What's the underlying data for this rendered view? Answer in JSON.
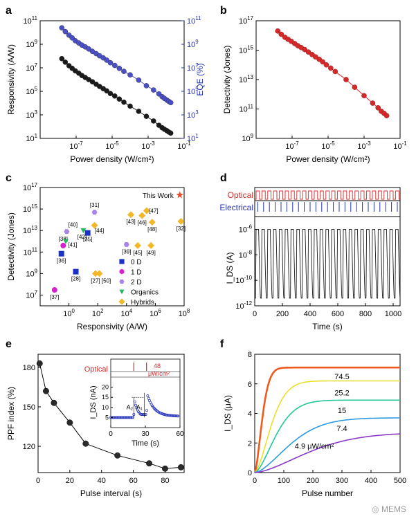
{
  "watermark": "MEMS",
  "chart_data": [
    {
      "panel": "a",
      "type": "scatter",
      "xscale": "log",
      "xlim": [
        1e-09,
        0.1
      ],
      "xticks": [
        "10^-7",
        "10^-5",
        "10^-3",
        "10^-1"
      ],
      "xlabel": "Power density (W/cm²)",
      "ylabel": "Responsivity (A/W)",
      "ylim": [
        10,
        100000000000.0
      ],
      "yscale": "log",
      "yticks": [
        "10^1",
        "10^3",
        "10^5",
        "10^7",
        "10^9",
        "10^11"
      ],
      "y2label": "EQE (%)",
      "y2lim": [
        10,
        100000000000.0
      ],
      "y2ticks": [
        "10^1",
        "10^3",
        "10^5",
        "10^7",
        "10^9",
        "10^11"
      ],
      "series": [
        {
          "color": "#4b50c8",
          "axis": "right",
          "fit": true,
          "x": [
            1.6e-08,
            2.5e-08,
            4e-08,
            6e-08,
            9e-08,
            1.4e-07,
            2.1e-07,
            3.2e-07,
            5e-07,
            8e-07,
            1.3e-06,
            2e-06,
            3.2e-06,
            5e-06,
            8e-06,
            1.4e-05,
            2.5e-05,
            4.5e-05,
            0.0001,
            0.0003,
            0.0008,
            0.002,
            0.004,
            0.006,
            0.008,
            0.011,
            0.014,
            0.018
          ],
          "y": [
            25000000000.0,
            12000000000.0,
            6000000000.0,
            3500000000.0,
            2000000000.0,
            1300000000.0,
            850000000.0,
            600000000.0,
            400000000.0,
            250000000.0,
            160000000.0,
            105000000.0,
            70000000.0,
            45000000.0,
            27000000.0,
            16000000.0,
            9000000.0,
            5000000.0,
            2500000.0,
            900000.0,
            300000.0,
            130000.0,
            60000.0,
            35000.0,
            25000.0,
            18000.0,
            14000.0,
            11000.0
          ]
        },
        {
          "color": "#1a1a1a",
          "axis": "left",
          "fit": true,
          "x": [
            1.6e-08,
            2.5e-08,
            4e-08,
            6e-08,
            9e-08,
            1.4e-07,
            2.1e-07,
            3.2e-07,
            5e-07,
            8e-07,
            1.3e-06,
            2e-06,
            3.2e-06,
            5e-06,
            8e-06,
            1.4e-05,
            2.5e-05,
            4.5e-05,
            0.0001,
            0.0003,
            0.0008,
            0.002,
            0.004,
            0.006,
            0.008,
            0.011,
            0.014,
            0.018
          ],
          "y": [
            60000000.0,
            30000000.0,
            15000000.0,
            9000000.0,
            5500000.0,
            3500000.0,
            2200000.0,
            1500000.0,
            1000000.0,
            650000.0,
            400000.0,
            260000.0,
            170000.0,
            110000.0,
            65000.0,
            40000.0,
            22000.0,
            12000.0,
            5500.0,
            2000.0,
            750.0,
            300.0,
            130.0,
            80,
            60,
            45,
            35,
            28
          ]
        }
      ]
    },
    {
      "panel": "b",
      "type": "scatter",
      "xscale": "log",
      "xlim": [
        1e-09,
        0.1
      ],
      "xticks": [
        "10^-7",
        "10^-5",
        "10^-3",
        "10^-1"
      ],
      "xlabel": "Power density (W/cm²)",
      "ylabel": "Detectivity (Jones)",
      "ylim": [
        1000000000.0,
        1e+17
      ],
      "yscale": "log",
      "yticks": [
        "10^9",
        "10^11",
        "10^13",
        "10^15",
        "10^17"
      ],
      "series": [
        {
          "color": "#d62a2a",
          "fit": true,
          "x": [
            1.6e-08,
            2.5e-08,
            4e-08,
            6e-08,
            9e-08,
            1.4e-07,
            2.1e-07,
            3.2e-07,
            5e-07,
            8e-07,
            1.3e-06,
            2e-06,
            3.2e-06,
            5e-06,
            8e-06,
            1.4e-05,
            2.5e-05,
            0.0001,
            0.0003,
            0.001,
            0.003,
            0.006,
            0.009,
            0.013,
            0.018
          ],
          "y": [
            2e+16,
            1.2e+16,
            7500000000000000.0,
            5500000000000000.0,
            4000000000000000.0,
            2800000000000000.0,
            2000000000000000.0,
            1500000000000000.0,
            1100000000000000.0,
            750000000000000.0,
            500000000000000.0,
            350000000000000.0,
            240000000000000.0,
            160000000000000.0,
            100000000000000.0,
            60000000000000.0,
            35000000000000.0,
            10000000000000.0,
            3000000000000.0,
            800000000000.0,
            250000000000.0,
            120000000000.0,
            70000000000.0,
            50000000000.0,
            35000000000.0
          ]
        }
      ]
    },
    {
      "panel": "c",
      "type": "scatter",
      "xscale": "log",
      "xlim": [
        0.01,
        100000000.0
      ],
      "xticks": [
        "10^0",
        "10^2",
        "10^4",
        "10^6",
        "10^8"
      ],
      "xlabel": "Responsivity (A/W)",
      "ylabel": "Detectivity (Jones)",
      "ylim": [
        1000000.0,
        1e+17
      ],
      "yscale": "log",
      "yticks": [
        "10^7",
        "10^9",
        "10^11",
        "10^13",
        "10^15",
        "10^17"
      ],
      "this_work": {
        "label": "This Work",
        "x": 50000000.0,
        "y": 2e+16,
        "color": "#e8502a"
      },
      "legend": [
        {
          "label": "0 D",
          "marker": "square",
          "color": "#1a31c8"
        },
        {
          "label": "1 D",
          "marker": "circle",
          "color": "#d620d0"
        },
        {
          "label": "2 D",
          "marker": "hexagon",
          "color": "#a884e8"
        },
        {
          "label": "Organics",
          "marker": "triangle",
          "color": "#22b85a"
        },
        {
          "label": "Hybrids",
          "marker": "diamond",
          "color": "#f2b82a"
        }
      ],
      "points": [
        {
          "ref": "[37]",
          "x": 0.1,
          "y": 30000000.0,
          "cls": "1 D"
        },
        {
          "ref": "[36]",
          "x": 0.3,
          "y": 70000000000.0,
          "cls": "0 D"
        },
        {
          "ref": "[38]",
          "x": 0.4,
          "y": 400000000000.0,
          "cls": "1 D"
        },
        {
          "ref": "[40]",
          "x": 0.7,
          "y": 8000000000000.0,
          "cls": "2 D"
        },
        {
          "ref": "[41]",
          "x": 0.6,
          "y": 1000000000000.0,
          "cls": "Organics"
        },
        {
          "ref": "[28]",
          "x": 3,
          "y": 1500000000.0,
          "cls": "0 D"
        },
        {
          "ref": "[42]",
          "x": 10,
          "y": 10000000000000.0,
          "cls": "Organics"
        },
        {
          "ref": "[35]",
          "x": 20,
          "y": 6000000000000.0,
          "cls": "0 D"
        },
        {
          "ref": "[31]",
          "x": 60,
          "y": 500000000000000.0,
          "cls": "2 D"
        },
        {
          "ref": "[44]",
          "x": 60,
          "y": 30000000000000.0,
          "cls": "Hybrids"
        },
        {
          "ref": "[27]",
          "x": 70,
          "y": 1000000000.0,
          "cls": "Hybrids"
        },
        {
          "ref": "[50]",
          "x": 130,
          "y": 1000000000.0,
          "cls": "Hybrids"
        },
        {
          "ref": "[39]",
          "x": 10000.0,
          "y": 500000000000.0,
          "cls": "2 D"
        },
        {
          "ref": "[43]",
          "x": 20000.0,
          "y": 300000000000000.0,
          "cls": "Hybrids"
        },
        {
          "ref": "[45]",
          "x": 60000.0,
          "y": 400000000000.0,
          "cls": "Hybrids"
        },
        {
          "ref": "[46]",
          "x": 120000.0,
          "y": 250000000000000.0,
          "cls": "Hybrids"
        },
        {
          "ref": "[47]",
          "x": 250000.0,
          "y": 700000000000000.0,
          "cls": "Hybrids"
        },
        {
          "ref": "[49]",
          "x": 500000.0,
          "y": 400000000000.0,
          "cls": "Hybrids"
        },
        {
          "ref": "[48]",
          "x": 600000.0,
          "y": 60000000000000.0,
          "cls": "Hybrids"
        },
        {
          "ref": "[32]",
          "x": 60000000.0,
          "y": 70000000000000.0,
          "cls": "Hybrids"
        }
      ]
    },
    {
      "panel": "d",
      "type": "line",
      "xlabel": "Time (s)",
      "xlim": [
        0,
        1050
      ],
      "xticks": [
        0,
        200,
        400,
        600,
        800,
        1000
      ],
      "ylabel": "I_DS (A)",
      "yscale": "log",
      "ylim": [
        1e-12,
        1e-05
      ],
      "yticks": [
        "10^-6",
        "10^-8",
        "10^-10",
        "10^-12"
      ],
      "trace_labels": [
        "Optical",
        "Electrical"
      ],
      "trace_colors": {
        "optical": "#d62a2a",
        "electrical": "#2431b8"
      },
      "pulse_count": 25,
      "period_s": 42,
      "i_high": 1e-06,
      "i_low": 4e-12
    },
    {
      "panel": "e",
      "type": "line",
      "xlabel": "Pulse interval (s)",
      "xlim": [
        0,
        92
      ],
      "xticks": [
        0,
        20,
        40,
        60,
        80
      ],
      "ylabel": "PPF index (%)",
      "ylim": [
        100,
        190
      ],
      "yticks": [
        120,
        150,
        180
      ],
      "x": [
        1,
        5,
        10,
        20,
        30,
        50,
        70,
        80,
        90
      ],
      "y": [
        183,
        162,
        153,
        138,
        122,
        113,
        107,
        103,
        104
      ],
      "inset": {
        "xlabel": "Time (s)",
        "xlim": [
          0,
          60
        ],
        "xticks": [
          0,
          30,
          60
        ],
        "ylabel": "I_DS (nA)",
        "ylim": [
          0,
          25
        ],
        "yticks": [
          5,
          10,
          15,
          20
        ],
        "optical_label": "Optical",
        "intensity_label": "48",
        "intensity_unit": "μW/cm²",
        "annotations": [
          "A₂",
          "A₁"
        ],
        "color": "#2431b8",
        "label_color": "#d62a2a"
      }
    },
    {
      "panel": "f",
      "type": "line",
      "xlabel": "Pulse number",
      "xlim": [
        0,
        500
      ],
      "xticks": [
        0,
        100,
        200,
        300,
        400,
        500
      ],
      "ylabel": "I_DS (μA)",
      "ylim": [
        0,
        8
      ],
      "yticks": [
        0,
        2,
        4,
        6,
        8
      ],
      "series": [
        {
          "name": "74.5",
          "color": "#f05a1e",
          "saturation": 7.1
        },
        {
          "name": "25.2",
          "color": "#e8e028",
          "saturation": 6.2
        },
        {
          "name": "15",
          "color": "#20c89a",
          "saturation": 4.9
        },
        {
          "name": "7.4",
          "color": "#2a9ae0",
          "saturation": 3.7
        },
        {
          "name": "4.9 μW/cm²",
          "color": "#8a38c8",
          "saturation": 2.7
        }
      ]
    }
  ]
}
